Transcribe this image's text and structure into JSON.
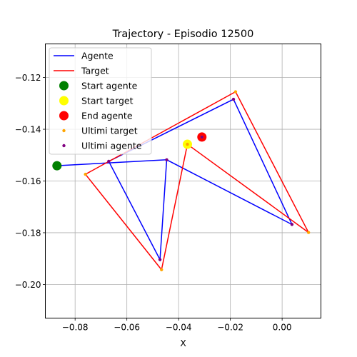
{
  "chart_data": {
    "type": "line",
    "title": "Trajectory - Episodio 12500",
    "xlabel": "X",
    "ylabel": "Y",
    "xlim": [
      -0.0915,
      0.015
    ],
    "ylim": [
      -0.213,
      -0.107
    ],
    "xticks": [
      -0.08,
      -0.06,
      -0.04,
      -0.02,
      0.0
    ],
    "xtick_labels": [
      "−0.08",
      "−0.06",
      "−0.04",
      "−0.02",
      "0.00"
    ],
    "yticks": [
      -0.12,
      -0.14,
      -0.16,
      -0.18,
      -0.2
    ],
    "ytick_labels": [
      "−0.12",
      "−0.14",
      "−0.16",
      "−0.18",
      "−0.20"
    ],
    "grid": true,
    "legend_position": "upper-left",
    "series": [
      {
        "name": "Agente",
        "kind": "line",
        "color": "#0000ff",
        "x": [
          -0.0872,
          -0.0446,
          0.0038,
          -0.0188,
          -0.067,
          -0.0472,
          -0.0446
        ],
        "y": [
          -0.1541,
          -0.1518,
          -0.1768,
          -0.1284,
          -0.1524,
          -0.1904,
          -0.1518
        ]
      },
      {
        "name": "Target",
        "kind": "line",
        "color": "#ff0000",
        "x": [
          -0.0366,
          0.0102,
          -0.018,
          -0.076,
          -0.0466,
          -0.0366
        ],
        "y": [
          -0.1458,
          -0.1799,
          -0.1255,
          -0.1574,
          -0.1943,
          -0.1458
        ]
      },
      {
        "name": "Start agente",
        "kind": "marker",
        "color": "#008000",
        "x": [
          -0.087
        ],
        "y": [
          -0.1541
        ]
      },
      {
        "name": "Start target",
        "kind": "marker",
        "color": "#ffff00",
        "x": [
          -0.0366
        ],
        "y": [
          -0.1458
        ]
      },
      {
        "name": "End agente",
        "kind": "marker",
        "color": "#ff0000",
        "x": [
          -0.031
        ],
        "y": [
          -0.143
        ]
      },
      {
        "name": "Ultimi target",
        "kind": "points",
        "color": "#ffa500",
        "x": [
          -0.031,
          0.0102,
          -0.018,
          -0.076,
          -0.0466,
          -0.0366
        ],
        "y": [
          -0.143,
          -0.1799,
          -0.1255,
          -0.1574,
          -0.1943,
          -0.1458
        ]
      },
      {
        "name": "Ultimi agente",
        "kind": "points",
        "color": "#800080",
        "x": [
          -0.031,
          0.0038,
          -0.0188,
          -0.067,
          -0.0472,
          -0.0446
        ],
        "y": [
          -0.143,
          -0.1768,
          -0.1284,
          -0.1524,
          -0.1904,
          -0.1518
        ]
      }
    ]
  }
}
